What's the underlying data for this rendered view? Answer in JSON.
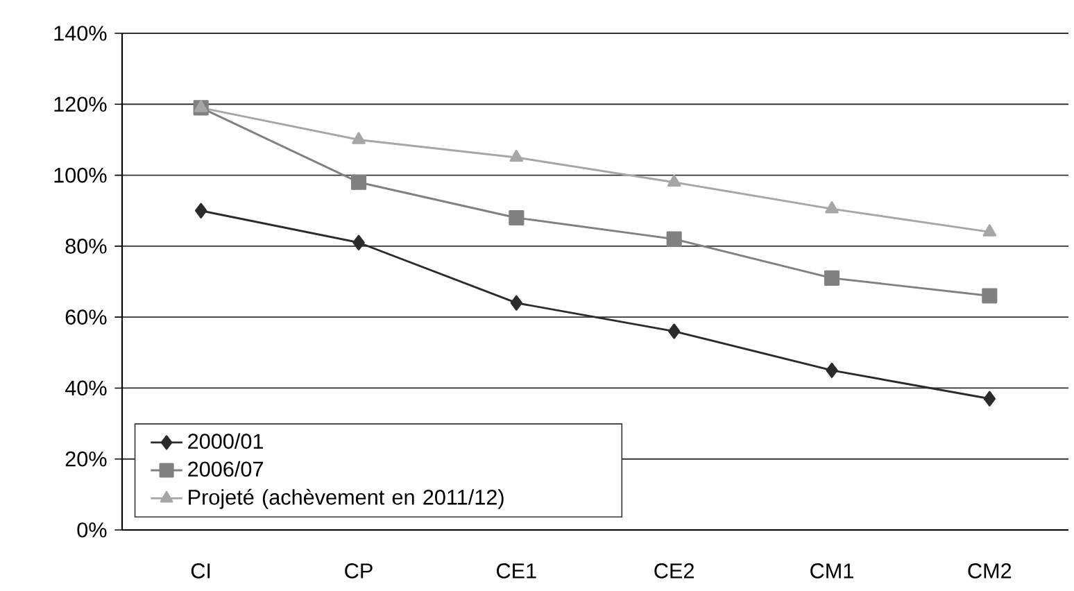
{
  "chart_data": {
    "type": "line",
    "categories": [
      "CI",
      "CP",
      "CE1",
      "CE2",
      "CM1",
      "CM2"
    ],
    "series": [
      {
        "name": "2000/01",
        "color": "#2b2b2b",
        "marker": "diamond",
        "values": [
          90,
          81,
          64,
          56,
          45,
          37
        ]
      },
      {
        "name": "2006/07",
        "color": "#808080",
        "marker": "square",
        "values": [
          119,
          98,
          88,
          82,
          71,
          66
        ]
      },
      {
        "name": "Projeté (achèvement en 2011/12)",
        "color": "#a6a6a6",
        "marker": "triangle",
        "values": [
          119,
          110,
          105,
          98,
          90.5,
          84
        ]
      }
    ],
    "ylim": [
      0,
      140
    ],
    "yticks": [
      {
        "value": 0,
        "label": "0%"
      },
      {
        "value": 20,
        "label": "20%"
      },
      {
        "value": 40,
        "label": "40%"
      },
      {
        "value": 60,
        "label": "60%"
      },
      {
        "value": 80,
        "label": "80%"
      },
      {
        "value": 100,
        "label": "100%"
      },
      {
        "value": 120,
        "label": "120%"
      },
      {
        "value": 140,
        "label": "140%"
      }
    ],
    "grid": "y",
    "legend": "bottom left",
    "line_style": "solid"
  }
}
